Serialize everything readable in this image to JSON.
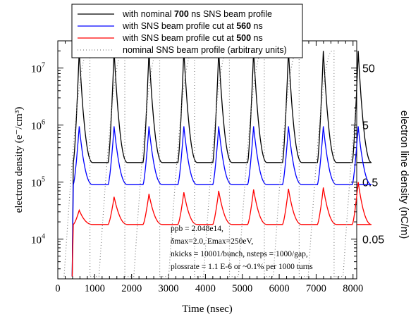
{
  "chart_data": {
    "type": "line",
    "xlabel": "Time (nsec)",
    "ylabel": "electron density  (e⁻/cm³)",
    "ylabel_right": "electron line density  (nC/m)",
    "xlim": [
      0,
      8100
    ],
    "ylim": [
      2000,
      30000000
    ],
    "yscale": "log",
    "x_ticks": [
      "0",
      "1000",
      "2000",
      "3000",
      "4000",
      "5000",
      "6000",
      "7000",
      "8000"
    ],
    "y_ticks_left": [
      {
        "value": 10000,
        "mant": "10",
        "exp": "4"
      },
      {
        "value": 100000,
        "mant": "10",
        "exp": "5"
      },
      {
        "value": 1000000,
        "mant": "10",
        "exp": "6"
      },
      {
        "value": 10000000,
        "mant": "10",
        "exp": "7"
      }
    ],
    "y_ticks_right": [
      {
        "value": 10000,
        "label": "0.05"
      },
      {
        "value": 100000,
        "label": "0.5"
      },
      {
        "value": 1000000,
        "label": "5"
      },
      {
        "value": 10000000,
        "label": "50"
      }
    ],
    "revolution_period_ns": 945,
    "first_pass_start_ns": 420,
    "series": [
      {
        "key": "nominal",
        "color": "#000000",
        "dash": "",
        "legend_parts": [
          {
            "t": "with nominal "
          },
          {
            "t": "700",
            "b": true
          },
          {
            "t": " ns SNS beam profile"
          }
        ],
        "peak": 20000000,
        "floor": 220000
      },
      {
        "key": "cut560",
        "color": "#0000ff",
        "dash": "",
        "legend_parts": [
          {
            "t": "with SNS beam profile cut at "
          },
          {
            "t": "560",
            "b": true
          },
          {
            "t": " ns"
          }
        ],
        "peak": 950000,
        "floor": 90000
      },
      {
        "key": "cut500",
        "color": "#ff0000",
        "dash": "",
        "legend_parts": [
          {
            "t": "with SNS beam profile cut at "
          },
          {
            "t": "500",
            "b": true
          },
          {
            "t": " ns"
          }
        ],
        "peaks": [
          32000,
          55000,
          62000,
          66000,
          70000,
          74000,
          76000,
          80000,
          100000
        ],
        "floor": 18000
      },
      {
        "key": "profile",
        "color": "#808080",
        "dash": "1,3",
        "legend_parts": [
          {
            "t": "nominal SNS beam profile  (arbitrary units)"
          }
        ],
        "peak": 20000000
      }
    ]
  },
  "annotation": [
    "ppb = 2.048e14,",
    "δmax=2.0, Emax=250eV,",
    "nkicks = 10001/bunch, nsteps = 1000/gap,",
    "plossrate = 1.1 E-6 or ~0.1% per 1000 turns"
  ]
}
